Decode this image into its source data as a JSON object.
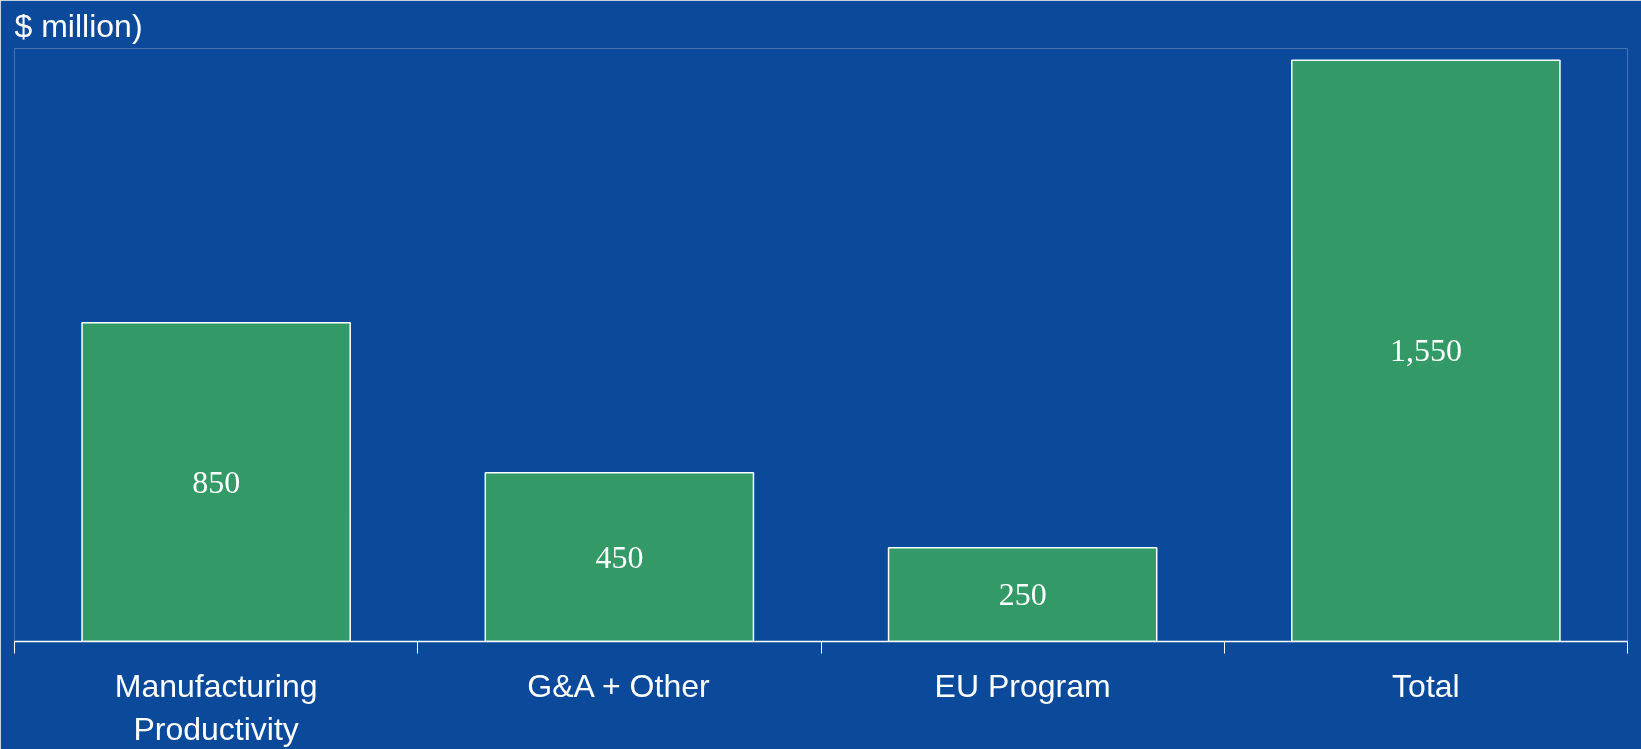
{
  "chart_data": {
    "type": "bar",
    "title": "$ million)",
    "categories": [
      "Manufacturing Productivity",
      "G&A + Other",
      "EU Program",
      "Total"
    ],
    "values": [
      850,
      450,
      250,
      1550
    ],
    "value_labels": [
      "850",
      "450",
      "250",
      "1,550"
    ],
    "color": "#339966",
    "grid": false
  }
}
